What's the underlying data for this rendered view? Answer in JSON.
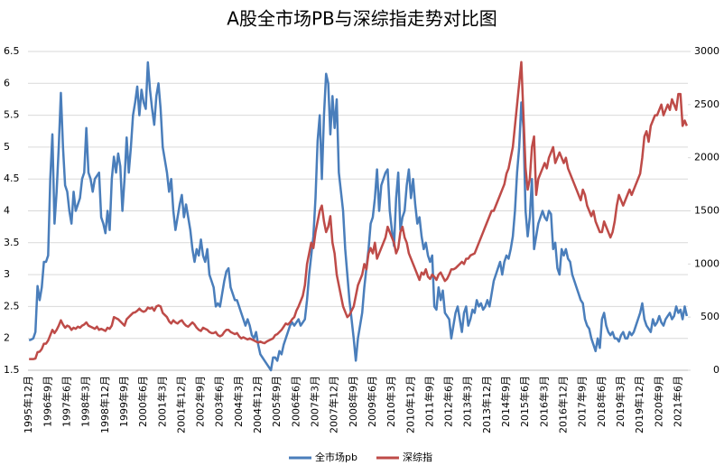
{
  "chart_data": {
    "type": "line",
    "title": "A股全市场PB与深综指走势对比图",
    "categories": [
      "1995年12月",
      null,
      null,
      null,
      null,
      null,
      null,
      null,
      null,
      "1996年9月",
      null,
      null,
      null,
      null,
      null,
      null,
      null,
      null,
      "1997年6月",
      null,
      null,
      null,
      null,
      null,
      null,
      null,
      null,
      "1998年3月",
      null,
      null,
      null,
      null,
      null,
      null,
      null,
      null,
      "1998年12月",
      null,
      null,
      null,
      null,
      null,
      null,
      null,
      null,
      "1999年9月",
      null,
      null,
      null,
      null,
      null,
      null,
      null,
      null,
      "2000年6月",
      null,
      null,
      null,
      null,
      null,
      null,
      null,
      null,
      "2001年3月",
      null,
      null,
      null,
      null,
      null,
      null,
      null,
      null,
      "2001年12月",
      null,
      null,
      null,
      null,
      null,
      null,
      null,
      null,
      "2002年9月",
      null,
      null,
      null,
      null,
      null,
      null,
      null,
      null,
      "2003年6月",
      null,
      null,
      null,
      null,
      null,
      null,
      null,
      null,
      "2004年3月",
      null,
      null,
      null,
      null,
      null,
      null,
      null,
      null,
      "2004年12月",
      null,
      null,
      null,
      null,
      null,
      null,
      null,
      null,
      "2005年9月",
      null,
      null,
      null,
      null,
      null,
      null,
      null,
      null,
      "2006年6月",
      null,
      null,
      null,
      null,
      null,
      null,
      null,
      null,
      "2007年3月",
      null,
      null,
      null,
      null,
      null,
      null,
      null,
      null,
      "2007年12月",
      null,
      null,
      null,
      null,
      null,
      null,
      null,
      null,
      "2008年9月",
      null,
      null,
      null,
      null,
      null,
      null,
      null,
      null,
      "2009年6月",
      null,
      null,
      null,
      null,
      null,
      null,
      null,
      null,
      "2010年3月",
      null,
      null,
      null,
      null,
      null,
      null,
      null,
      null,
      "2010年12月",
      null,
      null,
      null,
      null,
      null,
      null,
      null,
      null,
      "2011年9月",
      null,
      null,
      null,
      null,
      null,
      null,
      null,
      null,
      "2012年6月",
      null,
      null,
      null,
      null,
      null,
      null,
      null,
      null,
      "2013年3月",
      null,
      null,
      null,
      null,
      null,
      null,
      null,
      null,
      "2013年12月",
      null,
      null,
      null,
      null,
      null,
      null,
      null,
      null,
      "2014年9月",
      null,
      null,
      null,
      null,
      null,
      null,
      null,
      null,
      "2015年6月",
      null,
      null,
      null,
      null,
      null,
      null,
      null,
      null,
      "2016年3月",
      null,
      null,
      null,
      null,
      null,
      null,
      null,
      null,
      "2016年12月",
      null,
      null,
      null,
      null,
      null,
      null,
      null,
      null,
      "2017年9月",
      null,
      null,
      null,
      null,
      null,
      null,
      null,
      null,
      "2018年6月",
      null,
      null,
      null,
      null,
      null,
      null,
      null,
      null,
      "2019年3月",
      null,
      null,
      null,
      null,
      null,
      null,
      null,
      null,
      "2019年12月",
      null,
      null,
      null,
      null,
      null,
      null,
      null,
      null,
      "2020年9月",
      null,
      null,
      null,
      null,
      null,
      null,
      null,
      null,
      "2021年6月",
      null,
      null,
      null,
      null
    ],
    "series": [
      {
        "name": "全市场pb",
        "color": "#4a7ebb",
        "values": [
          1.97,
          1.98,
          2.0,
          2.1,
          2.82,
          2.6,
          2.8,
          3.2,
          3.2,
          3.3,
          4.5,
          5.2,
          3.8,
          4.3,
          5.0,
          5.85,
          5.0,
          4.4,
          4.3,
          4.0,
          3.8,
          4.3,
          4.0,
          4.1,
          4.2,
          4.5,
          4.6,
          5.3,
          4.6,
          4.5,
          4.3,
          4.5,
          4.55,
          4.6,
          3.9,
          3.8,
          3.65,
          4.0,
          3.7,
          4.5,
          4.85,
          4.6,
          4.9,
          4.7,
          4.0,
          4.5,
          5.15,
          4.6,
          5.0,
          5.5,
          5.7,
          5.95,
          5.5,
          5.9,
          5.7,
          5.6,
          6.33,
          5.9,
          5.6,
          5.35,
          5.8,
          6.0,
          5.6,
          5.0,
          4.8,
          4.6,
          4.3,
          4.5,
          4.0,
          3.7,
          3.9,
          4.1,
          4.25,
          3.9,
          4.1,
          3.9,
          3.7,
          3.4,
          3.2,
          3.4,
          3.3,
          3.55,
          3.3,
          3.2,
          3.4,
          3.0,
          2.9,
          2.8,
          2.5,
          2.55,
          2.5,
          2.7,
          2.9,
          3.05,
          3.1,
          2.8,
          2.7,
          2.6,
          2.6,
          2.5,
          2.4,
          2.3,
          2.2,
          2.3,
          2.2,
          2.05,
          2.0,
          2.1,
          1.9,
          1.75,
          1.7,
          1.65,
          1.6,
          1.55,
          1.5,
          1.7,
          1.7,
          1.65,
          1.8,
          1.75,
          1.9,
          2.0,
          2.1,
          2.2,
          2.25,
          2.2,
          2.25,
          2.3,
          2.2,
          2.25,
          2.3,
          2.6,
          3.0,
          3.3,
          3.6,
          4.2,
          5.1,
          5.5,
          4.5,
          5.5,
          6.15,
          6.0,
          5.2,
          5.8,
          5.3,
          5.75,
          4.6,
          4.3,
          4.0,
          3.4,
          3.0,
          2.6,
          2.3,
          2.0,
          1.65,
          2.0,
          2.2,
          2.4,
          2.8,
          3.1,
          3.4,
          3.8,
          3.9,
          4.2,
          4.65,
          4.0,
          4.4,
          4.5,
          4.6,
          4.65,
          4.0,
          3.7,
          3.45,
          4.2,
          4.6,
          3.7,
          3.9,
          4.0,
          4.4,
          4.65,
          4.2,
          4.5,
          4.1,
          3.8,
          3.9,
          3.6,
          3.4,
          3.5,
          3.3,
          3.2,
          3.3,
          2.5,
          2.45,
          2.8,
          2.6,
          2.75,
          2.4,
          2.35,
          2.3,
          2.0,
          2.2,
          2.4,
          2.5,
          2.3,
          2.1,
          2.4,
          2.5,
          2.2,
          2.3,
          2.45,
          2.4,
          2.6,
          2.5,
          2.55,
          2.45,
          2.5,
          2.6,
          2.5,
          2.7,
          2.9,
          3.0,
          3.1,
          3.2,
          3.0,
          3.2,
          3.3,
          3.25,
          3.4,
          3.6,
          4.0,
          4.6,
          5.0,
          5.7,
          5.3,
          4.0,
          3.6,
          3.9,
          4.5,
          3.4,
          3.6,
          3.8,
          3.9,
          4.0,
          3.9,
          3.85,
          4.0,
          3.95,
          3.4,
          3.5,
          3.1,
          3.0,
          3.4,
          3.3,
          3.4,
          3.25,
          3.2,
          3.0,
          2.9,
          2.8,
          2.7,
          2.6,
          2.55,
          2.3,
          2.2,
          2.15,
          2.0,
          1.9,
          1.8,
          2.0,
          1.85,
          2.3,
          2.4,
          2.2,
          2.1,
          2.05,
          2.1,
          2.0,
          2.0,
          1.95,
          2.05,
          2.1,
          2.0,
          2.0,
          2.1,
          2.05,
          2.1,
          2.2,
          2.3,
          2.4,
          2.55,
          2.3,
          2.2,
          2.15,
          2.1,
          2.3,
          2.2,
          2.25,
          2.35,
          2.25,
          2.2,
          2.3,
          2.35,
          2.4,
          2.3,
          2.35,
          2.5,
          2.4,
          2.45,
          2.3,
          2.5,
          2.35
        ]
      },
      {
        "name": "深综指",
        "color": "#be4b48",
        "axis": "y2",
        "values": [
          105,
          105,
          105,
          110,
          170,
          175,
          200,
          250,
          250,
          280,
          330,
          380,
          350,
          380,
          420,
          470,
          430,
          400,
          420,
          410,
          380,
          400,
          390,
          410,
          400,
          420,
          430,
          450,
          420,
          410,
          400,
          390,
          410,
          380,
          390,
          380,
          370,
          400,
          390,
          420,
          500,
          490,
          480,
          460,
          440,
          420,
          480,
          500,
          520,
          540,
          545,
          560,
          580,
          560,
          550,
          560,
          590,
          580,
          590,
          560,
          600,
          610,
          600,
          540,
          520,
          500,
          460,
          440,
          470,
          450,
          440,
          460,
          470,
          440,
          420,
          410,
          430,
          450,
          430,
          400,
          380,
          370,
          400,
          390,
          380,
          360,
          350,
          350,
          360,
          330,
          320,
          330,
          360,
          380,
          380,
          360,
          350,
          340,
          350,
          320,
          300,
          310,
          300,
          290,
          300,
          290,
          280,
          270,
          260,
          270,
          260,
          255,
          270,
          280,
          290,
          300,
          330,
          340,
          360,
          380,
          410,
          440,
          430,
          450,
          480,
          500,
          560,
          600,
          650,
          700,
          800,
          1000,
          1100,
          1200,
          1150,
          1300,
          1400,
          1500,
          1550,
          1400,
          1300,
          1350,
          1450,
          1200,
          1100,
          900,
          800,
          700,
          600,
          550,
          500,
          520,
          560,
          600,
          700,
          800,
          850,
          900,
          1000,
          950,
          1100,
          1150,
          1100,
          1200,
          1050,
          1100,
          1150,
          1200,
          1250,
          1350,
          1300,
          1250,
          1200,
          1100,
          1150,
          1300,
          1350,
          1250,
          1200,
          1100,
          1050,
          1000,
          950,
          900,
          850,
          920,
          900,
          950,
          880,
          860,
          900,
          880,
          850,
          900,
          920,
          880,
          840,
          860,
          900,
          950,
          950,
          960,
          980,
          1000,
          1020,
          1000,
          1050,
          1050,
          1080,
          1090,
          1100,
          1150,
          1200,
          1250,
          1300,
          1350,
          1400,
          1450,
          1500,
          1500,
          1550,
          1600,
          1650,
          1700,
          1750,
          1850,
          1900,
          2000,
          2100,
          2300,
          2500,
          2700,
          2900,
          2400,
          1900,
          1700,
          1800,
          2100,
          2200,
          1650,
          1800,
          1850,
          1900,
          1950,
          1900,
          2000,
          2050,
          2100,
          1950,
          2000,
          2050,
          2000,
          1950,
          2000,
          1900,
          1850,
          1800,
          1750,
          1700,
          1650,
          1600,
          1700,
          1650,
          1550,
          1500,
          1450,
          1500,
          1400,
          1350,
          1300,
          1300,
          1400,
          1350,
          1300,
          1250,
          1300,
          1400,
          1550,
          1650,
          1600,
          1550,
          1600,
          1650,
          1700,
          1650,
          1700,
          1750,
          1800,
          1850,
          2000,
          2200,
          2250,
          2150,
          2300,
          2350,
          2400,
          2400,
          2450,
          2500,
          2400,
          2450,
          2500,
          2450,
          2550,
          2500,
          2450,
          2600,
          2600,
          2300,
          2350,
          2300
        ]
      }
    ],
    "ylim": [
      1.5,
      6.5
    ],
    "yticks": [
      1.5,
      2,
      2.5,
      3,
      3.5,
      4,
      4.5,
      5,
      5.5,
      6,
      6.5
    ],
    "y2lim": [
      0,
      3000
    ],
    "y2ticks": [
      0,
      500,
      1000,
      1500,
      2000,
      2500,
      3000
    ],
    "grid": true,
    "legend": "bottom"
  }
}
